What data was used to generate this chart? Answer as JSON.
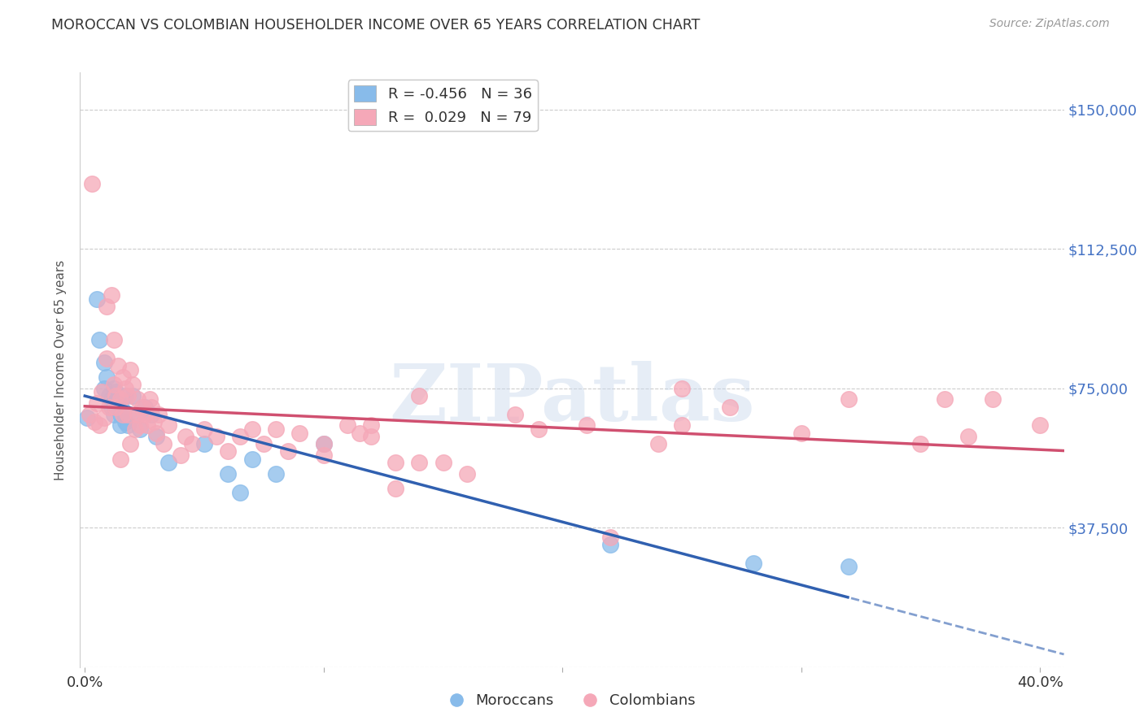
{
  "title": "MOROCCAN VS COLOMBIAN HOUSEHOLDER INCOME OVER 65 YEARS CORRELATION CHART",
  "source": "Source: ZipAtlas.com",
  "ylabel": "Householder Income Over 65 years",
  "watermark": "ZIPatlas",
  "moroccan_R": -0.456,
  "moroccan_N": 36,
  "colombian_R": 0.029,
  "colombian_N": 79,
  "xlim": [
    -0.002,
    0.41
  ],
  "ylim": [
    0,
    160000
  ],
  "yticks": [
    0,
    37500,
    75000,
    112500,
    150000
  ],
  "ytick_labels": [
    "",
    "$37,500",
    "$75,000",
    "$112,500",
    "$150,000"
  ],
  "xticks": [
    0.0,
    0.1,
    0.2,
    0.3,
    0.4
  ],
  "xtick_labels": [
    "0.0%",
    "",
    "",
    "",
    "40.0%"
  ],
  "moroccan_color": "#88BBEA",
  "colombian_color": "#F5A8B8",
  "moroccan_line_color": "#3060B0",
  "colombian_line_color": "#D05070",
  "background_color": "#FFFFFF",
  "title_color": "#333333",
  "grid_color": "#CCCCCC",
  "right_label_color": "#4472C4",
  "moroccan_x": [
    0.001,
    0.005,
    0.006,
    0.008,
    0.008,
    0.009,
    0.01,
    0.011,
    0.011,
    0.012,
    0.012,
    0.013,
    0.013,
    0.014,
    0.015,
    0.015,
    0.016,
    0.017,
    0.017,
    0.018,
    0.02,
    0.022,
    0.023,
    0.025,
    0.028,
    0.03,
    0.035,
    0.05,
    0.06,
    0.065,
    0.07,
    0.08,
    0.1,
    0.22,
    0.28,
    0.32
  ],
  "moroccan_y": [
    67000,
    99000,
    88000,
    75000,
    82000,
    78000,
    73000,
    72000,
    70000,
    75000,
    68000,
    74000,
    72000,
    71000,
    68000,
    65000,
    69000,
    73000,
    66000,
    65000,
    73000,
    68000,
    64000,
    70000,
    68000,
    62000,
    55000,
    60000,
    52000,
    47000,
    56000,
    52000,
    60000,
    33000,
    28000,
    27000
  ],
  "colombian_x": [
    0.003,
    0.004,
    0.005,
    0.006,
    0.007,
    0.008,
    0.009,
    0.009,
    0.01,
    0.011,
    0.012,
    0.012,
    0.013,
    0.013,
    0.014,
    0.015,
    0.016,
    0.016,
    0.017,
    0.018,
    0.018,
    0.019,
    0.02,
    0.021,
    0.022,
    0.023,
    0.024,
    0.025,
    0.026,
    0.027,
    0.028,
    0.029,
    0.03,
    0.031,
    0.033,
    0.035,
    0.04,
    0.042,
    0.045,
    0.05,
    0.055,
    0.06,
    0.065,
    0.07,
    0.075,
    0.08,
    0.085,
    0.09,
    0.1,
    0.11,
    0.115,
    0.12,
    0.13,
    0.14,
    0.15,
    0.16,
    0.18,
    0.19,
    0.21,
    0.22,
    0.24,
    0.25,
    0.27,
    0.3,
    0.32,
    0.35,
    0.36,
    0.37,
    0.38,
    0.4,
    0.14,
    0.13,
    0.015,
    0.019,
    0.022,
    0.12,
    0.1,
    0.002,
    0.25
  ],
  "colombian_y": [
    130000,
    66000,
    71000,
    65000,
    74000,
    67000,
    97000,
    83000,
    70000,
    100000,
    88000,
    76000,
    73000,
    70000,
    81000,
    72000,
    78000,
    68000,
    75000,
    73000,
    68000,
    80000,
    76000,
    64000,
    72000,
    65000,
    70000,
    68000,
    65000,
    72000,
    70000,
    66000,
    63000,
    68000,
    60000,
    65000,
    57000,
    62000,
    60000,
    64000,
    62000,
    58000,
    62000,
    64000,
    60000,
    64000,
    58000,
    63000,
    57000,
    65000,
    63000,
    62000,
    55000,
    55000,
    55000,
    52000,
    68000,
    64000,
    65000,
    35000,
    60000,
    65000,
    70000,
    63000,
    72000,
    60000,
    72000,
    62000,
    72000,
    65000,
    73000,
    48000,
    56000,
    60000,
    68000,
    65000,
    60000,
    68000,
    75000
  ]
}
